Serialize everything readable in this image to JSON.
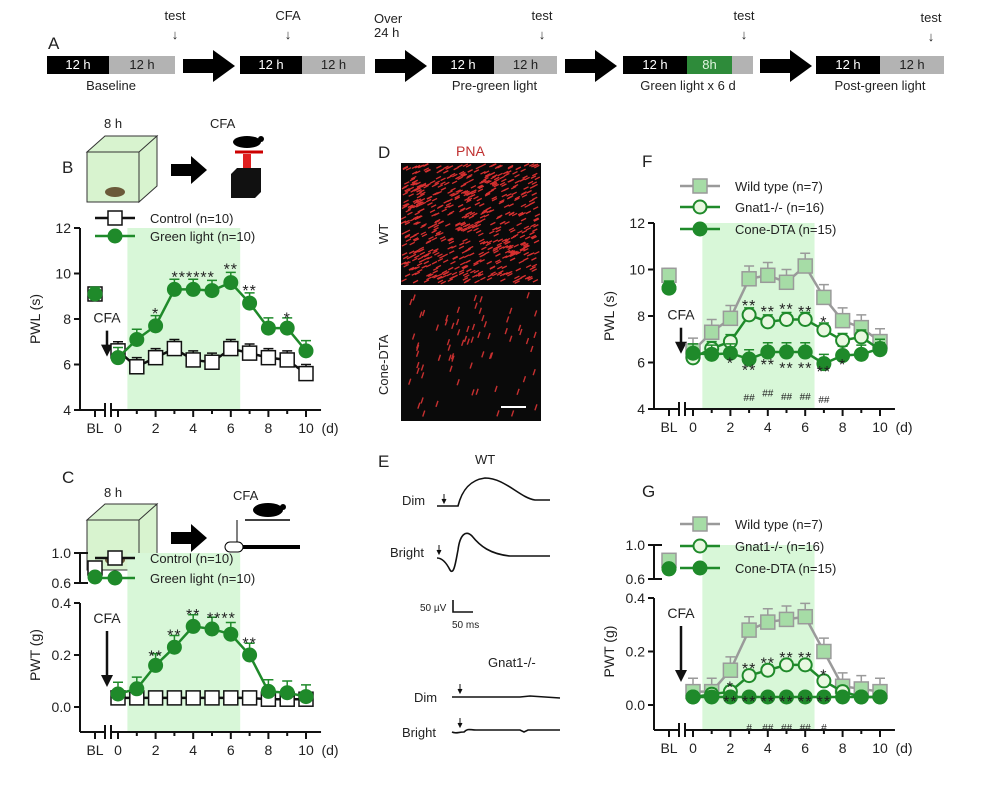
{
  "panels": {
    "A": "A",
    "B": "B",
    "C": "C",
    "D": "D",
    "E": "E",
    "F": "F",
    "G": "G"
  },
  "timeline": {
    "blocks": [
      {
        "caption": "Baseline",
        "top": "test",
        "segments": [
          "12 h",
          "12 h"
        ]
      },
      {
        "caption": "",
        "top": "CFA",
        "segments": [
          "12 h",
          "12 h"
        ]
      },
      {
        "caption": "Pre-green light",
        "top": "test",
        "segments": [
          "12 h",
          "12 h"
        ]
      },
      {
        "caption": "Green light x 6 d",
        "top": "test",
        "segments": [
          "12 h",
          "8h",
          ""
        ]
      },
      {
        "caption": "Post-green light",
        "top": "test",
        "segments": [
          "12 h",
          "12 h"
        ]
      }
    ],
    "over_label": "Over 24 h"
  },
  "schematic": {
    "duration": "8 h",
    "cfa": "CFA"
  },
  "histology": {
    "title": "PNA",
    "rows": [
      "WT",
      "Cone-DTA"
    ]
  },
  "erg": {
    "wt_title": "WT",
    "ko_title": "Gnat1-/-",
    "dim": "Dim",
    "bright": "Bright",
    "scale_v": "50 µV",
    "scale_t": "50 ms"
  },
  "colors": {
    "green": "#1f8a2a",
    "light_green": "#a6dca6",
    "shade": "#d8f7d8",
    "wt": "#9a9a9a"
  },
  "chart_data": [
    {
      "id": "B",
      "type": "line",
      "ylabel": "PWL (s)",
      "ylim": [
        4,
        12
      ],
      "yticks": [
        4,
        6,
        8,
        10,
        12
      ],
      "xticks": [
        0,
        2,
        4,
        6,
        8,
        10
      ],
      "xunit": "(d)",
      "bl_label": "BL",
      "cfa": "CFA",
      "shaded_days": [
        0.5,
        6.5
      ],
      "series": [
        {
          "name": "Control (n=10)",
          "style": "open-square",
          "bl": 9.1,
          "values": [
            6.6,
            5.9,
            6.3,
            6.7,
            6.2,
            6.1,
            6.7,
            6.5,
            6.3,
            6.2,
            5.6
          ],
          "err": 0.4
        },
        {
          "name": "Green light (n=10)",
          "style": "filled-circle",
          "bl": 9.1,
          "values": [
            6.3,
            7.1,
            7.7,
            9.3,
            9.3,
            9.25,
            9.6,
            8.7,
            7.6,
            7.6,
            6.6
          ],
          "err": 0.45
        }
      ],
      "annotations": [
        {
          "x": 2,
          "y": 8.4,
          "text": "*"
        },
        {
          "x": 4,
          "y": 10.0,
          "text": "******"
        },
        {
          "x": 6,
          "y": 10.35,
          "text": "**"
        },
        {
          "x": 7,
          "y": 9.4,
          "text": "**"
        },
        {
          "x": 9,
          "y": 8.2,
          "text": "*"
        }
      ]
    },
    {
      "id": "C",
      "type": "line",
      "ylabel": "PWT (g)",
      "ylim": [
        0,
        0.4
      ],
      "yticks": [
        0,
        0.2,
        0.4
      ],
      "ytick_labels": [
        "0.0",
        "0.2",
        "0.4"
      ],
      "upper_ylim": [
        0.6,
        1.0
      ],
      "upper_ticks": [
        "0.6",
        "1.0"
      ],
      "xticks": [
        0,
        2,
        4,
        6,
        8,
        10
      ],
      "xunit": "(d)",
      "bl_label": "BL",
      "cfa": "CFA",
      "shaded_days": [
        0.5,
        6.5
      ],
      "series": [
        {
          "name": "Control (n=10)",
          "style": "open-square",
          "bl": 0.8,
          "values": [
            0.035,
            0.035,
            0.035,
            0.035,
            0.035,
            0.035,
            0.035,
            0.035,
            0.03,
            0.03,
            0.03
          ],
          "err": 0.01
        },
        {
          "name": "Green light (n=10)",
          "style": "filled-circle",
          "bl": 0.68,
          "values": [
            0.05,
            0.07,
            0.16,
            0.23,
            0.31,
            0.3,
            0.28,
            0.2,
            0.06,
            0.055,
            0.04
          ],
          "err": 0.045
        }
      ],
      "annotations": [
        {
          "x": 2,
          "y": 0.21,
          "text": "**"
        },
        {
          "x": 3,
          "y": 0.29,
          "text": "**"
        },
        {
          "x": 4,
          "y": 0.37,
          "text": "**"
        },
        {
          "x": 5.5,
          "y": 0.355,
          "text": "****"
        },
        {
          "x": 7,
          "y": 0.26,
          "text": "**"
        }
      ]
    },
    {
      "id": "F",
      "type": "line",
      "ylabel": "PWL (s)",
      "ylim": [
        4,
        12
      ],
      "yticks": [
        4,
        6,
        8,
        10,
        12
      ],
      "xticks": [
        0,
        2,
        4,
        6,
        8,
        10
      ],
      "xunit": "(d)",
      "bl_label": "BL",
      "cfa": "CFA",
      "shaded_days": [
        0.5,
        6.5
      ],
      "series": [
        {
          "name": "Wild type (n=7)",
          "style": "wt-square",
          "bl": 9.75,
          "values": [
            6.5,
            7.3,
            7.9,
            9.6,
            9.75,
            9.45,
            10.15,
            8.8,
            7.8,
            7.5,
            6.9
          ],
          "err": 0.55
        },
        {
          "name": "Gnat1-/- (n=16)",
          "style": "open-circle",
          "bl": 9.2,
          "values": [
            6.2,
            6.6,
            6.9,
            8.05,
            7.75,
            7.85,
            7.85,
            7.4,
            6.95,
            7.1,
            6.55
          ],
          "err": 0.3
        },
        {
          "name": "Cone-DTA (n=15)",
          "style": "filled-circle",
          "bl": 9.2,
          "values": [
            6.4,
            6.35,
            6.4,
            6.15,
            6.45,
            6.45,
            6.45,
            5.95,
            6.3,
            6.35,
            6.6
          ],
          "err": 0.4
        }
      ],
      "annotations": [
        {
          "x": 3,
          "y": 8.6,
          "text": "**"
        },
        {
          "x": 4,
          "y": 8.35,
          "text": "**"
        },
        {
          "x": 5,
          "y": 8.45,
          "text": "**"
        },
        {
          "x": 6,
          "y": 8.35,
          "text": "**"
        },
        {
          "x": 7,
          "y": 7.9,
          "text": "*"
        },
        {
          "x": 2,
          "y": 5.65,
          "text": "*"
        },
        {
          "x": 3,
          "y": 5.35,
          "text": "**"
        },
        {
          "x": 4,
          "y": 5.6,
          "text": "**"
        },
        {
          "x": 5,
          "y": 5.45,
          "text": "**"
        },
        {
          "x": 6,
          "y": 5.45,
          "text": "**"
        },
        {
          "x": 7,
          "y": 5.3,
          "text": "**"
        },
        {
          "x": 8,
          "y": 5.6,
          "text": "*"
        },
        {
          "x": 3,
          "y": 4.95,
          "text": "##"
        },
        {
          "x": 4,
          "y": 5.15,
          "text": "##"
        },
        {
          "x": 5,
          "y": 5.0,
          "text": "##"
        },
        {
          "x": 6,
          "y": 5.0,
          "text": "##"
        },
        {
          "x": 7,
          "y": 4.85,
          "text": "##"
        }
      ]
    },
    {
      "id": "G",
      "type": "line",
      "ylabel": "PWT (g)",
      "ylim": [
        0,
        0.4
      ],
      "yticks": [
        0,
        0.2,
        0.4
      ],
      "ytick_labels": [
        "0.0",
        "0.2",
        "0.4"
      ],
      "upper_ylim": [
        0.6,
        1.0
      ],
      "upper_ticks": [
        "0.6",
        "1.0"
      ],
      "xticks": [
        0,
        2,
        4,
        6,
        8,
        10
      ],
      "xunit": "(d)",
      "bl_label": "BL",
      "cfa": "CFA",
      "shaded_days": [
        0.5,
        6.5
      ],
      "series": [
        {
          "name": "Wild type (n=7)",
          "style": "wt-square",
          "bl": 0.82,
          "values": [
            0.05,
            0.05,
            0.13,
            0.28,
            0.31,
            0.32,
            0.33,
            0.2,
            0.07,
            0.06,
            0.05
          ],
          "err": 0.05
        },
        {
          "name": "Gnat1-/- (n=16)",
          "style": "open-circle",
          "bl": 0.72,
          "values": [
            0.03,
            0.04,
            0.05,
            0.11,
            0.13,
            0.15,
            0.15,
            0.09,
            0.05,
            0.03,
            0.03
          ],
          "err": 0.02
        },
        {
          "name": "Cone-DTA (n=15)",
          "style": "filled-circle",
          "bl": 0.72,
          "values": [
            0.03,
            0.03,
            0.03,
            0.03,
            0.03,
            0.03,
            0.03,
            0.03,
            0.03,
            0.03,
            0.03
          ],
          "err": 0.01
        }
      ],
      "annotations": [
        {
          "x": 2,
          "y": 0.08,
          "text": "*"
        },
        {
          "x": 3,
          "y": 0.15,
          "text": "**"
        },
        {
          "x": 4,
          "y": 0.17,
          "text": "**"
        },
        {
          "x": 5,
          "y": 0.19,
          "text": "**"
        },
        {
          "x": 6,
          "y": 0.19,
          "text": "**"
        },
        {
          "x": 7,
          "y": 0.125,
          "text": "*"
        },
        {
          "x": 2,
          "y": -0.015,
          "text": "**"
        },
        {
          "x": 3,
          "y": -0.015,
          "text": "**"
        },
        {
          "x": 4,
          "y": -0.015,
          "text": "**"
        },
        {
          "x": 5,
          "y": -0.015,
          "text": "**"
        },
        {
          "x": 6,
          "y": -0.015,
          "text": "**"
        },
        {
          "x": 7,
          "y": -0.015,
          "text": "**"
        },
        {
          "x": 3,
          "y": -0.045,
          "text": "#"
        },
        {
          "x": 4,
          "y": -0.045,
          "text": "##"
        },
        {
          "x": 5,
          "y": -0.045,
          "text": "##"
        },
        {
          "x": 6,
          "y": -0.045,
          "text": "##"
        },
        {
          "x": 7,
          "y": -0.045,
          "text": "#"
        }
      ]
    }
  ]
}
